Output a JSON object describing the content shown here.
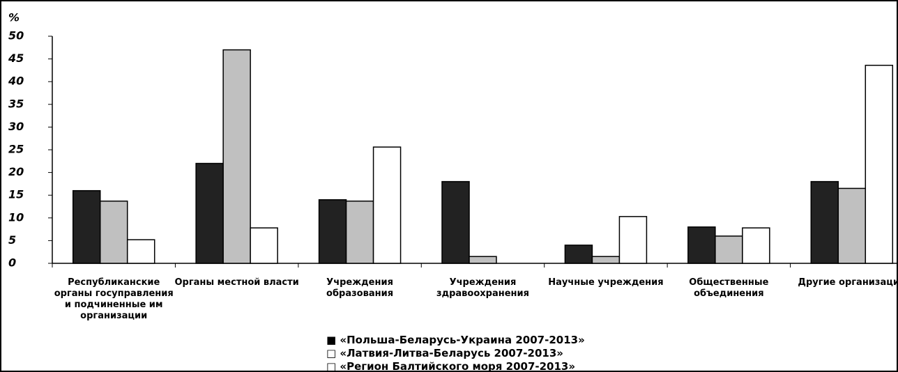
{
  "chart_data": {
    "type": "bar",
    "y_label": "%",
    "categories": [
      "Республиканские органы госуправления и подчиненные им организации",
      "Органы местной власти",
      "Учреждения образования",
      "Учреждения здравоохранения",
      "Научные учреждения",
      "Общественные объединения",
      "Другие организации"
    ],
    "series": [
      {
        "name": "■ «Польша-Беларусь-Украина 2007-2013»",
        "color": "#222222",
        "values": [
          16,
          22,
          14,
          18,
          4,
          8,
          18
        ]
      },
      {
        "name": "□ «Латвия-Литва-Беларусь 2007-2013»",
        "color": "#c0c0c0",
        "values": [
          13.7,
          47,
          13.7,
          1.5,
          1.5,
          6,
          16.5
        ]
      },
      {
        "name": "□ «Регион Балтийского моря 2007-2013»",
        "color": "#ffffff",
        "values": [
          5.2,
          7.8,
          25.6,
          0,
          10.3,
          7.8,
          43.6
        ]
      }
    ],
    "ylim": [
      0,
      50
    ],
    "yticks": [
      0,
      5,
      10,
      15,
      20,
      25,
      30,
      35,
      40,
      45,
      50
    ],
    "grid": false,
    "legend": "bottom"
  }
}
